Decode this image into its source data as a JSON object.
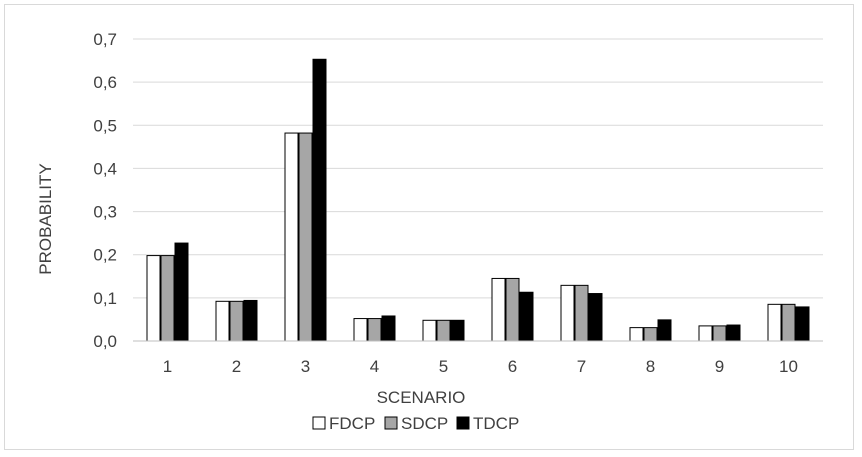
{
  "chart_data": {
    "type": "bar",
    "title": "",
    "xlabel": "SCENARIO",
    "ylabel": "PROBABILITY",
    "categories": [
      "1",
      "2",
      "3",
      "4",
      "5",
      "6",
      "7",
      "8",
      "9",
      "10"
    ],
    "ylim": [
      0,
      0.7
    ],
    "yticks": [
      "0,0",
      "0,1",
      "0,2",
      "0,3",
      "0,4",
      "0,5",
      "0,6",
      "0,7"
    ],
    "grid": true,
    "legend_position": "bottom",
    "series": [
      {
        "name": "FDCP",
        "color": "#ffffff",
        "values": [
          0.198,
          0.092,
          0.482,
          0.052,
          0.048,
          0.145,
          0.129,
          0.031,
          0.035,
          0.085
        ]
      },
      {
        "name": "SDCP",
        "color": "#a6a6a6",
        "values": [
          0.198,
          0.092,
          0.482,
          0.052,
          0.048,
          0.145,
          0.129,
          0.031,
          0.035,
          0.085
        ]
      },
      {
        "name": "TDCP",
        "color": "#000000",
        "values": [
          0.227,
          0.094,
          0.653,
          0.058,
          0.048,
          0.113,
          0.11,
          0.049,
          0.037,
          0.079
        ]
      }
    ]
  }
}
